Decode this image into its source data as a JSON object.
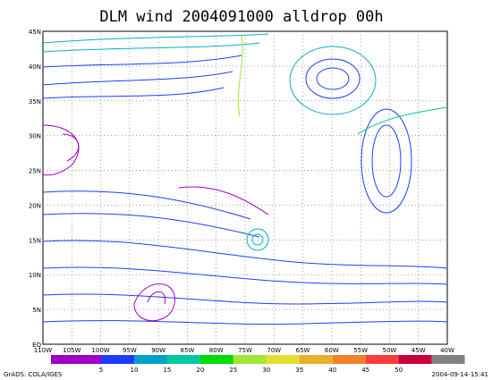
{
  "title": "DLM wind 2004091000 alldrop 00h",
  "x_labels": [
    "110W",
    "105W",
    "100W",
    "95W",
    "90W",
    "85W",
    "80W",
    "75W",
    "70W",
    "65W",
    "60W",
    "55W",
    "50W",
    "45W",
    "40W"
  ],
  "y_labels": [
    "EQ",
    "5N",
    "10N",
    "15N",
    "20N",
    "25N",
    "30N",
    "35N",
    "40N",
    "45N"
  ],
  "colorbar": {
    "colors": [
      "#a000c8",
      "#1e3cff",
      "#00a0c8",
      "#00c8a0",
      "#00dc00",
      "#a0e632",
      "#e6dc32",
      "#e6af2d",
      "#f08228",
      "#fa3c3c",
      "#c8003c",
      "#828282"
    ],
    "labels": [
      "5",
      "10",
      "15",
      "20",
      "25",
      "30",
      "35",
      "40",
      "45",
      "50"
    ]
  },
  "footer": {
    "left": "GrADS: COLA/IGES",
    "right": "2004-09-14-15:41"
  }
}
